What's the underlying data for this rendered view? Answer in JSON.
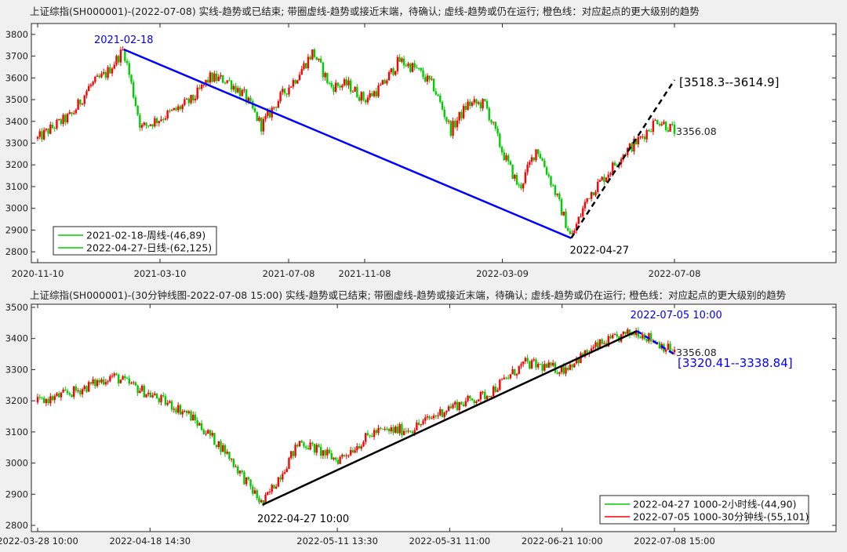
{
  "panels": [
    {
      "title": "上证综指(SH000001)-(2022-07-08)  实线-趋势或已结束;  带圈虚线-趋势或接近末端，待确认;  虚线-趋势或仍在运行;  橙色线：对应起点的更大级别的趋势",
      "ylim": [
        2750,
        3850
      ],
      "yticks": [
        2800,
        2900,
        3000,
        3100,
        3200,
        3300,
        3400,
        3500,
        3600,
        3700,
        3800
      ],
      "xticks": [
        "2020-11-10",
        "2021-03-10",
        "2021-07-08",
        "2021-11-08",
        "2022-03-09",
        "2022-07-08"
      ],
      "last_price_label": "3356.08",
      "annotations": [
        {
          "text": "2021-02-18",
          "color": "#0000ff"
        },
        {
          "text": "2022-04-27",
          "color": "#000000"
        },
        {
          "text": "[3518.3--3614.9]",
          "color": "#000000"
        }
      ],
      "trendlines": [
        {
          "from": [
            "2021-02-18",
            3731
          ],
          "to": [
            "2022-04-27",
            2863
          ],
          "style": "solid",
          "color": "#0000ff"
        },
        {
          "from": [
            "2022-04-27",
            2863
          ],
          "to": [
            "2022-07-08",
            3590
          ],
          "style": "dashed",
          "color": "#000000"
        }
      ],
      "legend": [
        {
          "label": "2021-02-18-周线-(46,89)",
          "color": "#00cc00"
        },
        {
          "label": "2022-04-27-日线-(62,125)",
          "color": "#00cc00"
        }
      ]
    },
    {
      "title": "上证综指(SH000001)-(30分钟线图-2022-07-08 15:00)  实线-趋势或已结束;  带圈虚线-趋势或接近末端，待确认;  虚线-趋势或仍在运行;  橙色线：对应起点的更大级别的趋势",
      "ylim": [
        2780,
        3510
      ],
      "yticks": [
        2800,
        2900,
        3000,
        3100,
        3200,
        3300,
        3400,
        3500
      ],
      "xticks": [
        "2022-03-28 10:00",
        "2022-04-18 14:30",
        "2022-05-11 13:30",
        "2022-05-31 11:00",
        "2022-06-21 10:00",
        "2022-07-08 15:00"
      ],
      "last_price_label": "3356.08",
      "annotations": [
        {
          "text": "2022-07-05 10:00",
          "color": "#0000ff"
        },
        {
          "text": "2022-04-27 10:00",
          "color": "#000000"
        },
        {
          "text": "[3320.41--3338.84]",
          "color": "#0000ff"
        }
      ],
      "trendlines": [
        {
          "from": [
            "2022-04-27 10:00",
            2866
          ],
          "to": [
            "2022-07-05 10:00",
            3424
          ],
          "style": "solid",
          "color": "#000000"
        },
        {
          "from": [
            "2022-07-05 10:00",
            3424
          ],
          "to": [
            "2022-07-08 15:00",
            3349
          ],
          "style": "dashed",
          "color": "#0000ff"
        }
      ],
      "legend": [
        {
          "label": "2022-04-27 1000-2小时线-(44,90)",
          "color": "#00cc00"
        },
        {
          "label": "2022-07-05 1000-30分钟线-(55,101)",
          "color": "#ff0000"
        }
      ]
    }
  ],
  "chart_data": [
    {
      "type": "line",
      "title": "上证综指(SH000001)-(2022-07-08)",
      "xlabel": "",
      "ylabel": "",
      "ylim": [
        2750,
        3850
      ],
      "x": [
        "2020-11-10",
        "2020-12-01",
        "2020-12-20",
        "2021-01-10",
        "2021-01-25",
        "2021-02-18",
        "2021-03-09",
        "2021-03-25",
        "2021-04-15",
        "2021-05-06",
        "2021-05-25",
        "2021-06-15",
        "2021-07-01",
        "2021-07-28",
        "2021-08-15",
        "2021-09-01",
        "2021-09-13",
        "2021-09-30",
        "2021-10-20",
        "2021-11-08",
        "2021-11-30",
        "2021-12-13",
        "2021-12-31",
        "2022-01-20",
        "2022-01-28",
        "2022-02-15",
        "2022-03-01",
        "2022-03-09",
        "2022-03-15",
        "2022-04-01",
        "2022-04-15",
        "2022-04-27",
        "2022-05-10",
        "2022-05-25",
        "2022-06-08",
        "2022-06-20",
        "2022-07-05",
        "2022-07-08"
      ],
      "series": [
        {
          "values": [
            3320,
            3380,
            3430,
            3560,
            3620,
            3731,
            3370,
            3410,
            3450,
            3500,
            3600,
            3590,
            3520,
            3380,
            3500,
            3600,
            3720,
            3560,
            3570,
            3500,
            3560,
            3680,
            3640,
            3560,
            3360,
            3480,
            3480,
            3260,
            3090,
            3280,
            3090,
            2863,
            3060,
            3150,
            3250,
            3320,
            3410,
            3356
          ]
        }
      ],
      "trendlines": [
        {
          "from": [
            "2021-02-18",
            3731
          ],
          "to": [
            "2022-04-27",
            2863
          ]
        },
        {
          "from": [
            "2022-04-27",
            2863
          ],
          "to": [
            "2022-07-08",
            3590
          ]
        }
      ]
    },
    {
      "type": "line",
      "title": "上证综指(SH000001)-(30分钟线图-2022-07-08 15:00)",
      "xlabel": "",
      "ylabel": "",
      "ylim": [
        2780,
        3510
      ],
      "x": [
        "2022-03-28 10:00",
        "2022-04-01",
        "2022-04-07",
        "2022-04-18 14:30",
        "2022-04-21",
        "2022-04-25",
        "2022-04-27 10:00",
        "2022-05-05",
        "2022-05-11 13:30",
        "2022-05-18",
        "2022-05-26",
        "2022-05-31 11:00",
        "2022-06-08",
        "2022-06-14",
        "2022-06-21 10:00",
        "2022-06-27",
        "2022-07-05 10:00",
        "2022-07-08 15:00"
      ],
      "series": [
        {
          "values": [
            3195,
            3230,
            3280,
            3220,
            3160,
            3040,
            2866,
            3070,
            3010,
            3100,
            3110,
            3180,
            3220,
            3320,
            3300,
            3380,
            3424,
            3356
          ]
        }
      ]
    }
  ]
}
